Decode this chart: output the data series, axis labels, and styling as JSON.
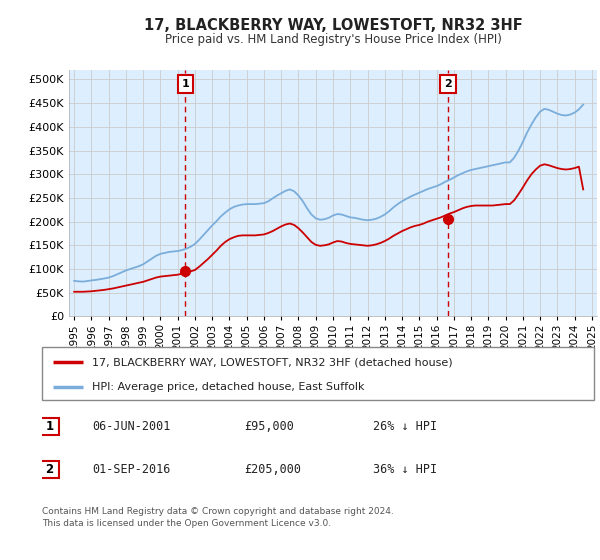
{
  "title": "17, BLACKBERRY WAY, LOWESTOFT, NR32 3HF",
  "subtitle": "Price paid vs. HM Land Registry's House Price Index (HPI)",
  "ytick_values": [
    0,
    50000,
    100000,
    150000,
    200000,
    250000,
    300000,
    350000,
    400000,
    450000,
    500000
  ],
  "ylim": [
    0,
    520000
  ],
  "xlim_start": 1994.7,
  "xlim_end": 2025.3,
  "xticks": [
    1995,
    1996,
    1997,
    1998,
    1999,
    2000,
    2001,
    2002,
    2003,
    2004,
    2005,
    2006,
    2007,
    2008,
    2009,
    2010,
    2011,
    2012,
    2013,
    2014,
    2015,
    2016,
    2017,
    2018,
    2019,
    2020,
    2021,
    2022,
    2023,
    2024,
    2025
  ],
  "sale1_x": 2001.44,
  "sale1_y": 95000,
  "sale1_label": "1",
  "sale2_x": 2016.67,
  "sale2_y": 205000,
  "sale2_label": "2",
  "red_line_color": "#cc0000",
  "blue_line_color": "#7aadda",
  "sale_marker_color": "#cc0000",
  "vline_color": "#cc0000",
  "annotation_box_color": "#cc0000",
  "grid_color": "#cccccc",
  "bg_color": "#ffffff",
  "plot_bg_color": "#ddeeff",
  "legend_label_red": "17, BLACKBERRY WAY, LOWESTOFT, NR32 3HF (detached house)",
  "legend_label_blue": "HPI: Average price, detached house, East Suffolk",
  "note1_label": "1",
  "note1_date": "06-JUN-2001",
  "note1_price": "£95,000",
  "note1_pct": "26% ↓ HPI",
  "note2_label": "2",
  "note2_date": "01-SEP-2016",
  "note2_price": "£205,000",
  "note2_pct": "36% ↓ HPI",
  "footer": "Contains HM Land Registry data © Crown copyright and database right 2024.\nThis data is licensed under the Open Government Licence v3.0.",
  "hpi_data_x": [
    1995.0,
    1995.25,
    1995.5,
    1995.75,
    1996.0,
    1996.25,
    1996.5,
    1996.75,
    1997.0,
    1997.25,
    1997.5,
    1997.75,
    1998.0,
    1998.25,
    1998.5,
    1998.75,
    1999.0,
    1999.25,
    1999.5,
    1999.75,
    2000.0,
    2000.25,
    2000.5,
    2000.75,
    2001.0,
    2001.25,
    2001.5,
    2001.75,
    2002.0,
    2002.25,
    2002.5,
    2002.75,
    2003.0,
    2003.25,
    2003.5,
    2003.75,
    2004.0,
    2004.25,
    2004.5,
    2004.75,
    2005.0,
    2005.25,
    2005.5,
    2005.75,
    2006.0,
    2006.25,
    2006.5,
    2006.75,
    2007.0,
    2007.25,
    2007.5,
    2007.75,
    2008.0,
    2008.25,
    2008.5,
    2008.75,
    2009.0,
    2009.25,
    2009.5,
    2009.75,
    2010.0,
    2010.25,
    2010.5,
    2010.75,
    2011.0,
    2011.25,
    2011.5,
    2011.75,
    2012.0,
    2012.25,
    2012.5,
    2012.75,
    2013.0,
    2013.25,
    2013.5,
    2013.75,
    2014.0,
    2014.25,
    2014.5,
    2014.75,
    2015.0,
    2015.25,
    2015.5,
    2015.75,
    2016.0,
    2016.25,
    2016.5,
    2016.75,
    2017.0,
    2017.25,
    2017.5,
    2017.75,
    2018.0,
    2018.25,
    2018.5,
    2018.75,
    2019.0,
    2019.25,
    2019.5,
    2019.75,
    2020.0,
    2020.25,
    2020.5,
    2020.75,
    2021.0,
    2021.25,
    2021.5,
    2021.75,
    2022.0,
    2022.25,
    2022.5,
    2022.75,
    2023.0,
    2023.25,
    2023.5,
    2023.75,
    2024.0,
    2024.25,
    2024.5
  ],
  "hpi_data_y": [
    75000,
    74000,
    73500,
    74500,
    76000,
    77000,
    78500,
    80000,
    82000,
    85000,
    89000,
    93000,
    97000,
    100000,
    103000,
    106000,
    110000,
    116000,
    122000,
    128000,
    132000,
    134000,
    136000,
    137000,
    138000,
    140000,
    143000,
    147000,
    153000,
    162000,
    172000,
    182000,
    192000,
    201000,
    211000,
    219000,
    226000,
    231000,
    234000,
    236000,
    237000,
    237000,
    237000,
    238000,
    239000,
    243000,
    249000,
    255000,
    260000,
    265000,
    268000,
    264000,
    255000,
    243000,
    228000,
    215000,
    207000,
    204000,
    205000,
    208000,
    213000,
    216000,
    215000,
    212000,
    209000,
    208000,
    206000,
    204000,
    203000,
    204000,
    206000,
    210000,
    215000,
    222000,
    230000,
    237000,
    243000,
    248000,
    253000,
    257000,
    261000,
    265000,
    269000,
    272000,
    275000,
    279000,
    284000,
    288000,
    293000,
    298000,
    302000,
    306000,
    309000,
    311000,
    313000,
    315000,
    317000,
    319000,
    321000,
    323000,
    325000,
    325000,
    335000,
    350000,
    368000,
    388000,
    405000,
    420000,
    432000,
    438000,
    436000,
    432000,
    428000,
    425000,
    424000,
    426000,
    430000,
    437000,
    447000
  ],
  "price_data_x": [
    1995.0,
    1995.25,
    1995.5,
    1995.75,
    1996.0,
    1996.25,
    1996.5,
    1996.75,
    1997.0,
    1997.25,
    1997.5,
    1997.75,
    1998.0,
    1998.25,
    1998.5,
    1998.75,
    1999.0,
    1999.25,
    1999.5,
    1999.75,
    2000.0,
    2000.25,
    2000.5,
    2000.75,
    2001.0,
    2001.25,
    2001.5,
    2001.75,
    2002.0,
    2002.25,
    2002.5,
    2002.75,
    2003.0,
    2003.25,
    2003.5,
    2003.75,
    2004.0,
    2004.25,
    2004.5,
    2004.75,
    2005.0,
    2005.25,
    2005.5,
    2005.75,
    2006.0,
    2006.25,
    2006.5,
    2006.75,
    2007.0,
    2007.25,
    2007.5,
    2007.75,
    2008.0,
    2008.25,
    2008.5,
    2008.75,
    2009.0,
    2009.25,
    2009.5,
    2009.75,
    2010.0,
    2010.25,
    2010.5,
    2010.75,
    2011.0,
    2011.25,
    2011.5,
    2011.75,
    2012.0,
    2012.25,
    2012.5,
    2012.75,
    2013.0,
    2013.25,
    2013.5,
    2013.75,
    2014.0,
    2014.25,
    2014.5,
    2014.75,
    2015.0,
    2015.25,
    2015.5,
    2015.75,
    2016.0,
    2016.25,
    2016.5,
    2016.75,
    2017.0,
    2017.25,
    2017.5,
    2017.75,
    2018.0,
    2018.25,
    2018.5,
    2018.75,
    2019.0,
    2019.25,
    2019.5,
    2019.75,
    2020.0,
    2020.25,
    2020.5,
    2020.75,
    2021.0,
    2021.25,
    2021.5,
    2021.75,
    2022.0,
    2022.25,
    2022.5,
    2022.75,
    2023.0,
    2023.25,
    2023.5,
    2023.75,
    2024.0,
    2024.25,
    2024.5
  ],
  "price_data_y": [
    52000,
    52000,
    52000,
    52500,
    53000,
    54000,
    55000,
    56000,
    57500,
    59000,
    61000,
    63000,
    65000,
    67000,
    69000,
    71000,
    73000,
    76000,
    79000,
    82000,
    84000,
    85000,
    86000,
    87000,
    88000,
    90000,
    92000,
    95000,
    98000,
    105000,
    113000,
    121000,
    130000,
    139000,
    149000,
    157000,
    163000,
    167000,
    170000,
    171000,
    171000,
    171000,
    171000,
    172000,
    173000,
    176000,
    180000,
    185000,
    190000,
    194000,
    196000,
    193000,
    186000,
    177000,
    167000,
    157000,
    151000,
    149000,
    150000,
    152000,
    156000,
    159000,
    158000,
    155000,
    153000,
    152000,
    151000,
    150000,
    149000,
    150000,
    152000,
    155000,
    159000,
    164000,
    170000,
    175000,
    180000,
    184000,
    188000,
    191000,
    193000,
    196000,
    200000,
    203000,
    206000,
    209000,
    213000,
    217000,
    220000,
    224000,
    228000,
    231000,
    233000,
    234000,
    234000,
    234000,
    234000,
    234000,
    235000,
    236000,
    237000,
    237000,
    245000,
    258000,
    272000,
    287000,
    300000,
    310000,
    318000,
    321000,
    319000,
    316000,
    313000,
    311000,
    310000,
    311000,
    313000,
    316000,
    268000
  ]
}
